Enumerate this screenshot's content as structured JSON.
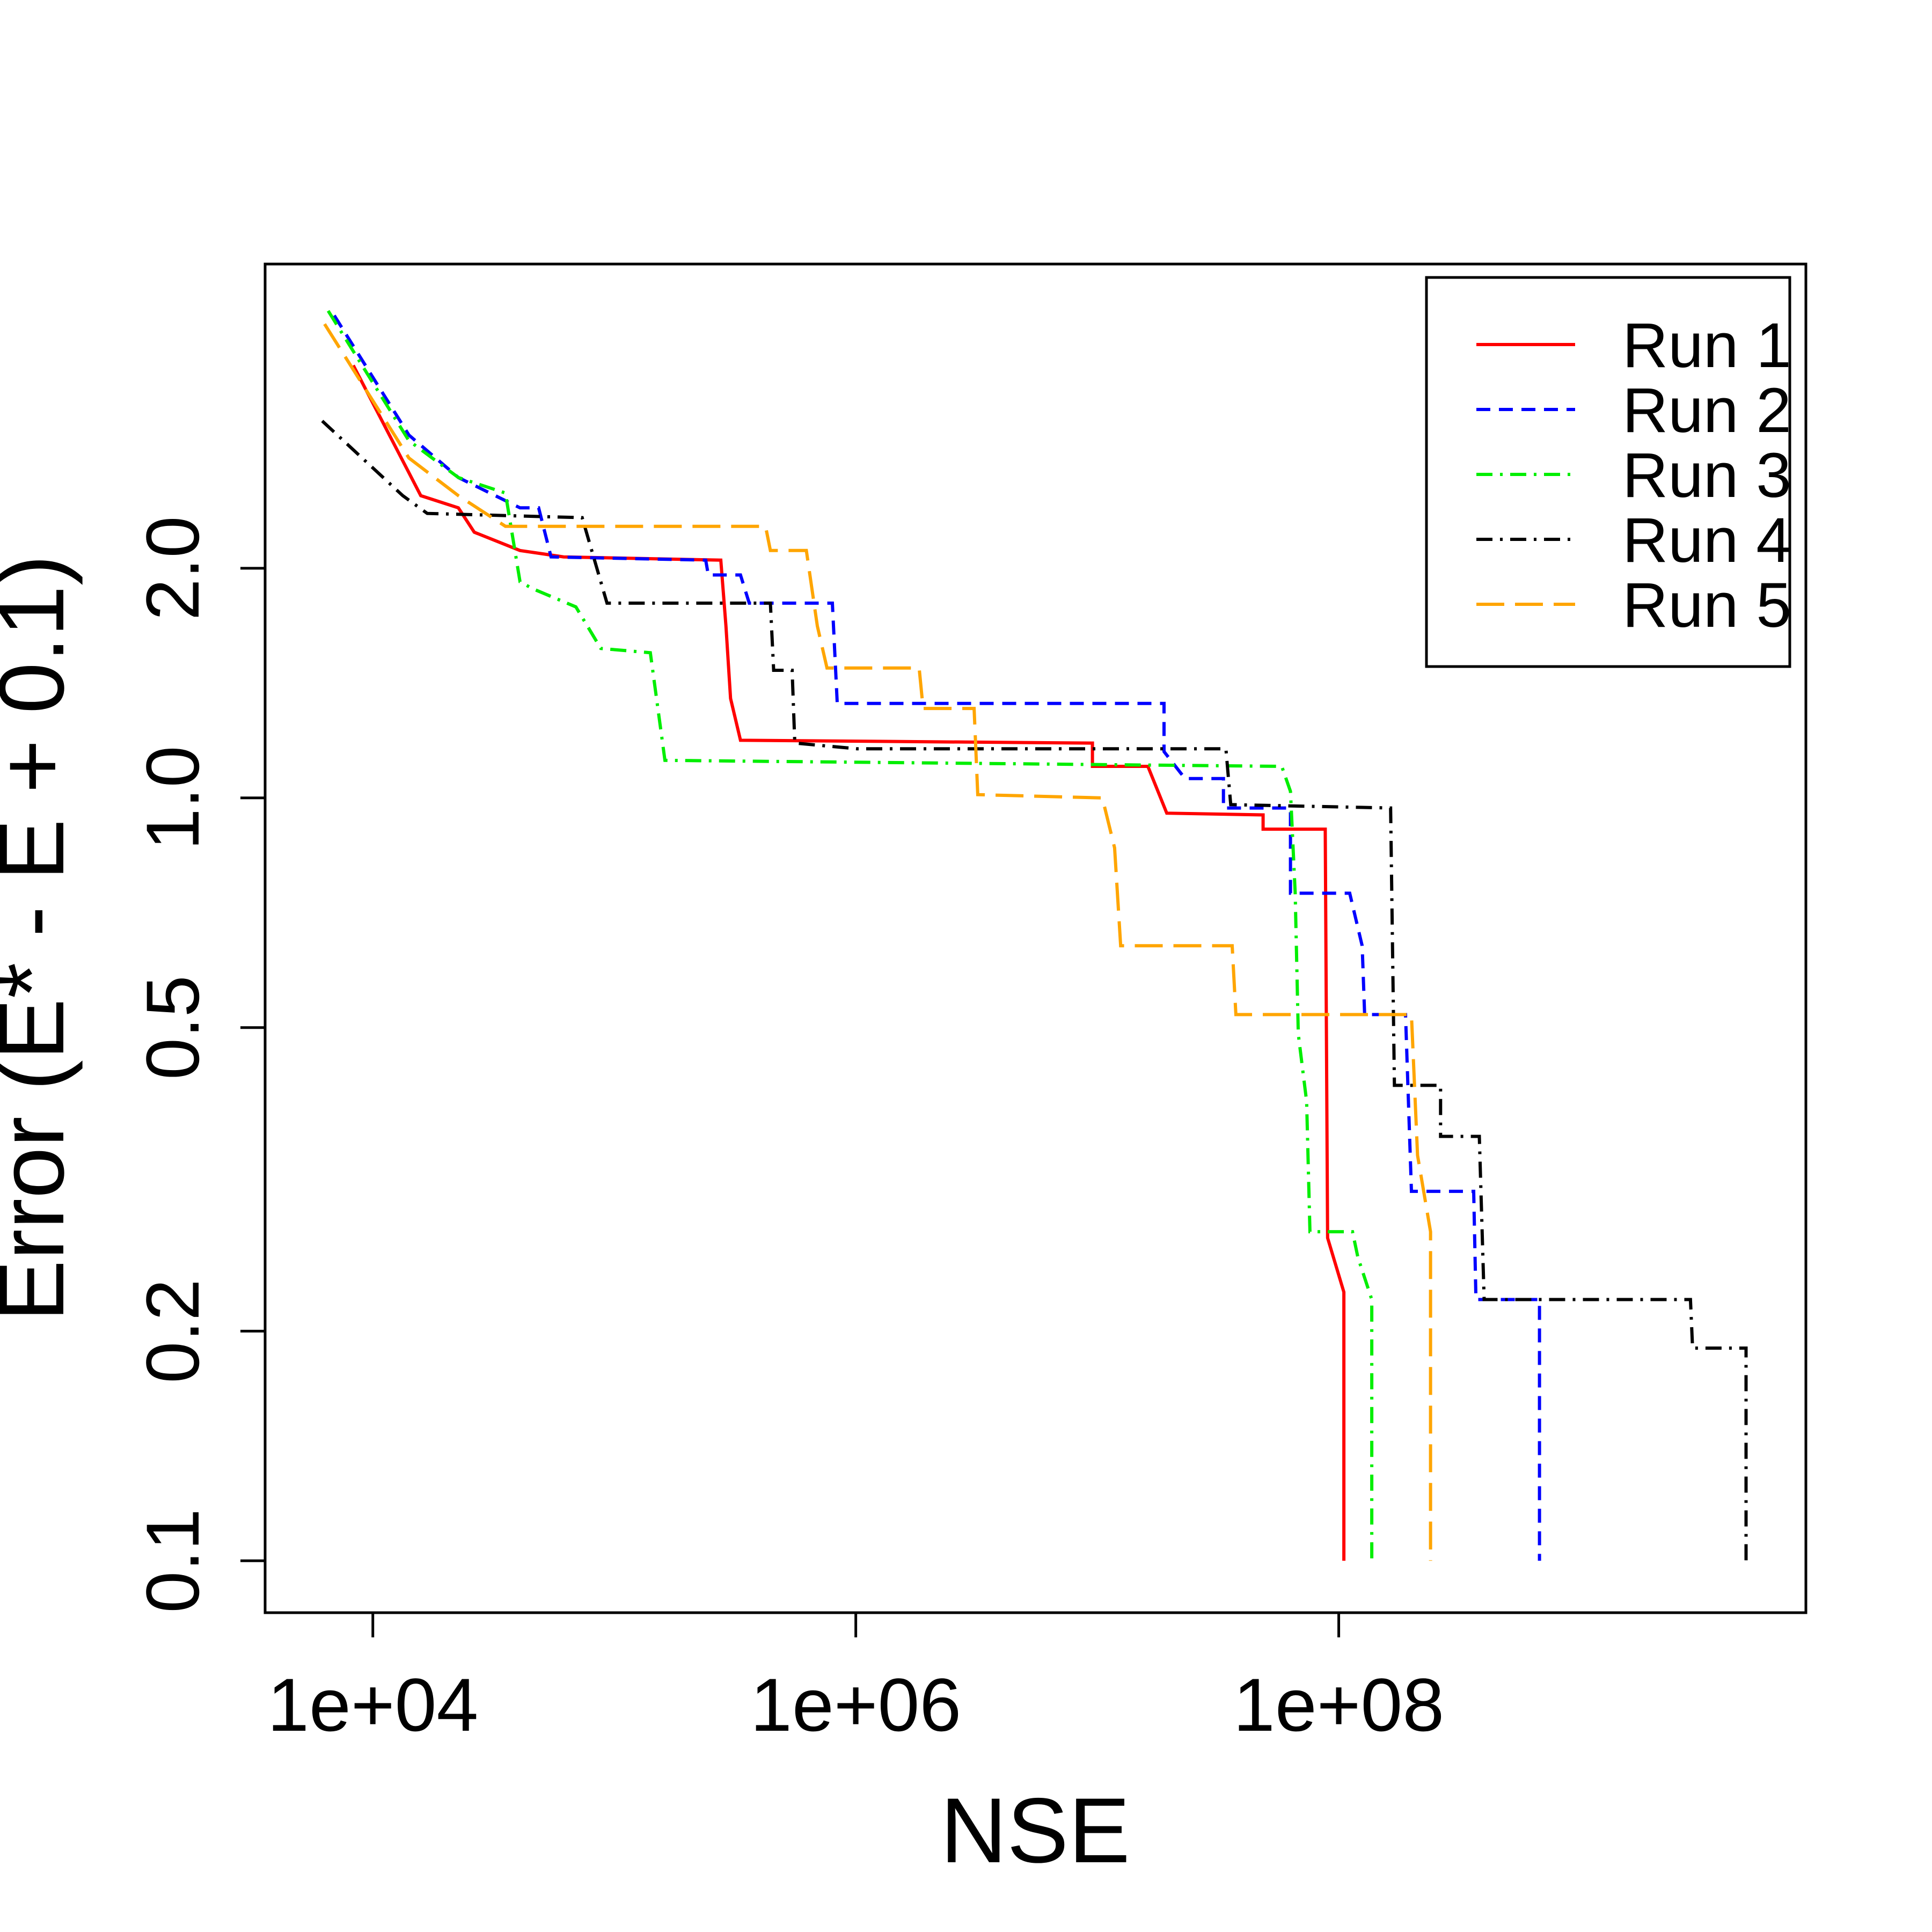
{
  "chart_data": {
    "type": "line",
    "x_label": "NSE",
    "y_label": "Error (E* - E + 0.1)",
    "xlog": true,
    "ylog": true,
    "xlim": [
      3580,
      8600000000
    ],
    "ylim": [
      0.0855,
      5.01
    ],
    "xticks": [
      {
        "value": 10000,
        "label": "1e+04"
      },
      {
        "value": 1000000,
        "label": "1e+06"
      },
      {
        "value": 100000000,
        "label": "1e+08"
      }
    ],
    "yticks": [
      {
        "value": 0.1,
        "label": "0.1"
      },
      {
        "value": 0.2,
        "label": "0.2"
      },
      {
        "value": 0.5,
        "label": "0.5"
      },
      {
        "value": 1,
        "label": "1.0"
      },
      {
        "value": 2,
        "label": "2.0"
      }
    ],
    "legend": "top-right",
    "series": [
      {
        "name": "Run 1",
        "color": "#ff0000",
        "dash": "solid",
        "x": [
          8300,
          15800,
          22600,
          26300,
          40700,
          61700,
          276000,
          290000,
          303000,
          333000,
          9550000,
          9550000,
          16200000,
          19400000,
          48600000,
          48600000,
          87900000,
          89900000,
          105000000,
          105000000
        ],
        "values": [
          3.69,
          2.49,
          2.4,
          2.23,
          2.11,
          2.07,
          2.05,
          1.68,
          1.35,
          1.19,
          1.18,
          1.1,
          1.1,
          0.955,
          0.95,
          0.91,
          0.91,
          0.265,
          0.225,
          0.1
        ]
      },
      {
        "name": "Run 2",
        "color": "#0000ff",
        "dash": "dashed",
        "x": [
          6920,
          14100,
          22600,
          40700,
          48600,
          54700,
          239000,
          245000,
          333000,
          362000,
          800000,
          838000,
          18900000,
          18900000,
          23100000,
          33300000,
          33300000,
          63100000,
          63100000,
          111000000,
          125000000,
          128000000,
          189000000,
          200000000,
          362000000,
          370000000,
          678000000,
          678000000
        ],
        "values": [
          4.29,
          2.99,
          2.63,
          2.4,
          2.4,
          2.07,
          2.05,
          1.96,
          1.96,
          1.8,
          1.8,
          1.33,
          1.33,
          1.15,
          1.06,
          1.06,
          0.97,
          0.97,
          0.75,
          0.75,
          0.64,
          0.52,
          0.52,
          0.305,
          0.305,
          0.22,
          0.22,
          0.1
        ]
      },
      {
        "name": "Run 3",
        "color": "#00ee00",
        "dash": "dashdot",
        "x": [
          6530,
          14100,
          22600,
          35400,
          40700,
          46000,
          69300,
          87900,
          141000,
          162000,
          58100000,
          63100000,
          66000000,
          68000000,
          73600000,
          76000000,
          114000000,
          120000000,
          137000000,
          137000000
        ],
        "values": [
          4.35,
          2.94,
          2.63,
          2.51,
          1.92,
          1.88,
          1.78,
          1.57,
          1.55,
          1.12,
          1.1,
          1.02,
          0.75,
          0.49,
          0.4,
          0.27,
          0.27,
          0.25,
          0.22,
          0.1
        ]
      },
      {
        "name": "Run 4",
        "color": "#000000",
        "dash": "dashdot",
        "x": [
          6170,
          13300,
          16800,
          73600,
          93300,
          443000,
          457000,
          545000,
          559000,
          1010000,
          34100000,
          35700000,
          164000000,
          170000000,
          264000000,
          264000000,
          382000000,
          400000000,
          2860000000,
          2920000000,
          4860000000,
          4860000000
        ],
        "values": [
          3.12,
          2.49,
          2.36,
          2.33,
          1.8,
          1.8,
          1.47,
          1.47,
          1.18,
          1.16,
          1.16,
          0.98,
          0.97,
          0.42,
          0.42,
          0.36,
          0.36,
          0.22,
          0.22,
          0.19,
          0.19,
          0.1
        ]
      },
      {
        "name": "Run 5",
        "color": "#ffa500",
        "dash": "longdash",
        "x": [
          6310,
          14100,
          22600,
          35400,
          423000,
          443000,
          624000,
          693000,
          760000,
          1830000,
          1900000,
          3090000,
          3200000,
          10500000,
          11800000,
          12500000,
          36200000,
          37500000,
          200000000,
          212000000,
          240000000,
          240000000
        ],
        "values": [
          4.18,
          2.79,
          2.49,
          2.27,
          2.27,
          2.11,
          2.11,
          1.68,
          1.48,
          1.48,
          1.31,
          1.31,
          1.01,
          1.0,
          0.86,
          0.64,
          0.64,
          0.52,
          0.52,
          0.34,
          0.27,
          0.1
        ]
      }
    ]
  }
}
